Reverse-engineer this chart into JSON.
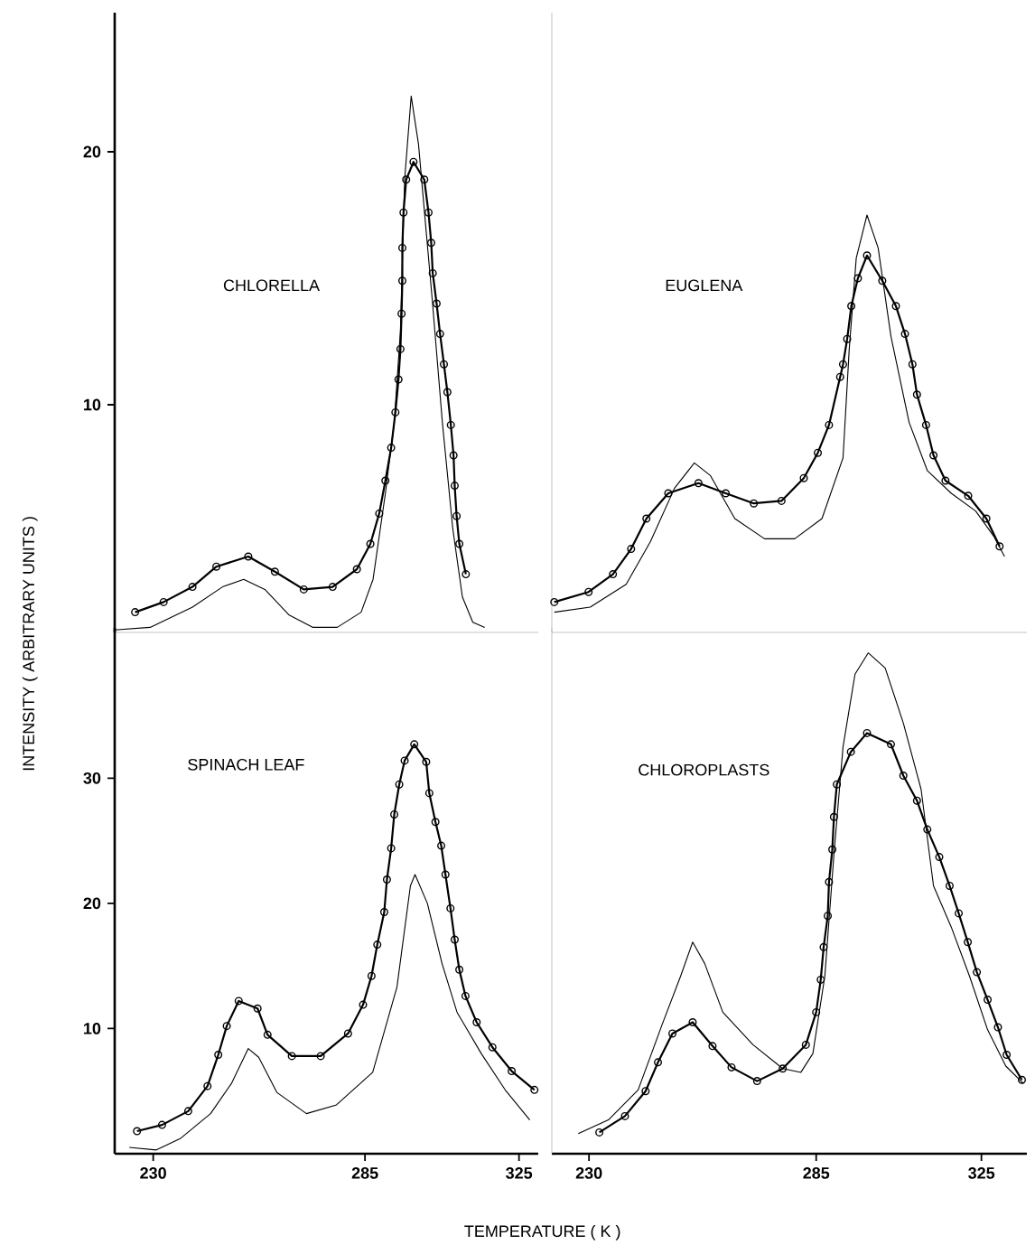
{
  "chart_data": [
    {
      "type": "line",
      "title": "CHLORELLA",
      "xlim": [
        220,
        330
      ],
      "ylim": [
        1,
        25.5
      ],
      "yticks": [
        10,
        20
      ],
      "tick_labels": "y",
      "series": [
        {
          "color": "#000000",
          "marker": "circle",
          "x": [
            225.3,
            232.7,
            240.2,
            246.4,
            254.7,
            261.6,
            269.1,
            276.6,
            282.9,
            286.4,
            288.7,
            290.3,
            291.8,
            292.9,
            293.7,
            294.2,
            294.5,
            294.7,
            294.7,
            295.0,
            295.7,
            297.6,
            300.4,
            301.5,
            302.2,
            302.6,
            303.6,
            304.5,
            305.5,
            306.4,
            307.3,
            308.0,
            308.3,
            308.8,
            309.5,
            311.2
          ],
          "values": [
            1.8,
            2.2,
            2.8,
            3.6,
            4.0,
            3.4,
            2.7,
            2.8,
            3.5,
            4.5,
            5.7,
            7.0,
            8.3,
            9.7,
            11.0,
            12.2,
            13.6,
            14.9,
            16.2,
            17.6,
            18.9,
            19.6,
            18.9,
            17.6,
            16.4,
            15.2,
            14.0,
            12.8,
            11.6,
            10.5,
            9.2,
            8.0,
            6.8,
            5.6,
            4.5,
            3.3
          ]
        },
        {
          "color": "#000000",
          "marker": "none",
          "x": [
            220.0,
            229.2,
            240.2,
            248.0,
            253.5,
            259.0,
            265.2,
            271.5,
            277.8,
            284.0,
            287.1,
            290.3,
            292.6,
            294.2,
            295.3,
            297.0,
            298.9,
            300.4,
            302.5,
            305.1,
            307.8,
            310.3,
            313.0,
            316.1
          ],
          "values": [
            1.1,
            1.2,
            2.0,
            2.8,
            3.1,
            2.7,
            1.7,
            1.2,
            1.2,
            1.8,
            3.1,
            6.5,
            9.3,
            12.9,
            18.9,
            22.2,
            20.3,
            17.7,
            14.1,
            9.3,
            5.1,
            2.4,
            1.4,
            1.2
          ]
        }
      ]
    },
    {
      "type": "line",
      "title": "EUGLENA",
      "xlim": [
        221,
        336
      ],
      "ylim": [
        1,
        25.5
      ],
      "tick_labels": false,
      "series": [
        {
          "color": "#000000",
          "marker": "circle",
          "x": [
            221.6,
            229.9,
            235.8,
            240.2,
            243.9,
            249.2,
            256.5,
            263.1,
            269.9,
            276.6,
            282.0,
            285.4,
            288.1,
            290.8,
            291.5,
            292.5,
            293.5,
            295.1,
            297.3,
            301.0,
            304.3,
            306.5,
            308.3,
            309.4,
            311.6,
            313.4,
            316.3,
            321.8,
            326.2,
            329.4
          ],
          "values": [
            2.2,
            2.6,
            3.3,
            4.3,
            5.5,
            6.5,
            6.9,
            6.5,
            6.1,
            6.2,
            7.1,
            8.1,
            9.2,
            11.1,
            11.6,
            12.6,
            13.9,
            15.0,
            15.9,
            14.9,
            13.9,
            12.8,
            11.6,
            10.4,
            9.2,
            8.0,
            7.0,
            6.4,
            5.5,
            4.4
          ]
        },
        {
          "color": "#000000",
          "marker": "none",
          "x": [
            221.6,
            230.3,
            239.0,
            244.9,
            250.7,
            255.5,
            259.4,
            265.3,
            272.5,
            279.8,
            286.4,
            291.5,
            293.0,
            294.7,
            297.3,
            300.0,
            303.1,
            307.5,
            311.9,
            317.7,
            323.6,
            328.0,
            330.6
          ],
          "values": [
            1.8,
            2.0,
            2.9,
            4.6,
            6.7,
            7.7,
            7.2,
            5.5,
            4.7,
            4.7,
            5.5,
            7.9,
            12.2,
            15.8,
            17.5,
            16.2,
            12.7,
            9.3,
            7.4,
            6.5,
            5.8,
            4.8,
            4.0
          ]
        }
      ]
    },
    {
      "type": "line",
      "title": "SPINACH LEAF",
      "xlabel": "TEMPERATURE ( K )",
      "ylabel": "INTENSITY ( ARBITRARY UNITS )",
      "xlim": [
        220,
        330
      ],
      "ylim": [
        0,
        42
      ],
      "xticks": [
        230,
        285,
        325
      ],
      "yticks": [
        10,
        20,
        30
      ],
      "series": [
        {
          "color": "#000000",
          "marker": "circle",
          "x": [
            225.8,
            232.3,
            239.1,
            244.1,
            246.9,
            249.1,
            252.2,
            257.1,
            259.7,
            266.0,
            273.5,
            280.6,
            284.5,
            286.7,
            288.2,
            290.0,
            290.7,
            291.8,
            292.6,
            293.9,
            295.3,
            297.8,
            300.9,
            301.7,
            303.3,
            304.8,
            305.9,
            307.2,
            308.3,
            309.5,
            311.1,
            314.0,
            318.1,
            323.1,
            329.0
          ],
          "values": [
            1.8,
            2.3,
            3.4,
            5.4,
            7.9,
            10.2,
            12.2,
            11.6,
            9.5,
            7.8,
            7.8,
            9.6,
            11.9,
            14.2,
            16.7,
            19.3,
            21.9,
            24.4,
            27.1,
            29.5,
            31.4,
            32.7,
            31.3,
            28.8,
            26.5,
            24.6,
            22.3,
            19.6,
            17.1,
            14.7,
            12.6,
            10.5,
            8.5,
            6.6,
            5.1
          ]
        },
        {
          "color": "#000000",
          "marker": "none",
          "x": [
            223.8,
            230.8,
            237.0,
            244.9,
            250.3,
            254.7,
            257.4,
            262.1,
            269.8,
            277.6,
            287.0,
            293.3,
            296.8,
            298.0,
            301.2,
            305.0,
            308.9,
            315.2,
            321.4,
            327.8
          ],
          "values": [
            0.5,
            0.3,
            1.2,
            3.2,
            5.6,
            8.4,
            7.7,
            4.9,
            3.2,
            3.9,
            6.5,
            13.3,
            21.4,
            22.3,
            20.0,
            15.2,
            11.3,
            8.0,
            5.1,
            2.7
          ]
        }
      ]
    },
    {
      "type": "line",
      "title": "CHLOROPLASTS",
      "xlim": [
        221,
        336
      ],
      "ylim": [
        0,
        42
      ],
      "xticks": [
        230,
        285,
        325
      ],
      "tick_labels": "x",
      "series": [
        {
          "color": "#000000",
          "marker": "circle",
          "x": [
            232.5,
            238.7,
            243.7,
            246.7,
            250.2,
            255.1,
            259.9,
            264.5,
            270.7,
            276.9,
            282.5,
            285.0,
            286.1,
            286.8,
            287.8,
            288.1,
            288.9,
            289.3,
            290.0,
            293.4,
            297.3,
            303.1,
            306.1,
            309.4,
            311.9,
            314.8,
            317.3,
            319.5,
            321.7,
            323.9,
            326.5,
            329.0,
            331.1,
            334.8
          ],
          "values": [
            1.7,
            3.0,
            5.0,
            7.3,
            9.6,
            10.5,
            8.6,
            6.9,
            5.8,
            6.8,
            8.7,
            11.3,
            13.9,
            16.5,
            19.0,
            21.7,
            24.3,
            26.9,
            29.5,
            32.1,
            33.6,
            32.7,
            30.2,
            28.2,
            25.9,
            23.7,
            21.4,
            19.2,
            16.9,
            14.5,
            12.3,
            10.1,
            7.9,
            5.9
          ]
        },
        {
          "color": "#000000",
          "marker": "none",
          "x": [
            227.4,
            234.7,
            241.9,
            247.8,
            252.2,
            255.1,
            258.0,
            262.4,
            269.7,
            276.9,
            281.3,
            284.2,
            287.1,
            289.3,
            291.5,
            294.4,
            297.6,
            301.7,
            306.1,
            310.4,
            313.4,
            317.7,
            322.1,
            326.5,
            330.9,
            335.2
          ],
          "values": [
            1.6,
            2.7,
            5.1,
            10.4,
            14.2,
            16.9,
            15.2,
            11.3,
            8.7,
            6.8,
            6.5,
            8.0,
            14.2,
            23.9,
            32.5,
            38.3,
            40.0,
            38.8,
            34.4,
            29.1,
            21.4,
            18.1,
            14.2,
            9.9,
            7.0,
            5.6
          ]
        }
      ]
    }
  ]
}
